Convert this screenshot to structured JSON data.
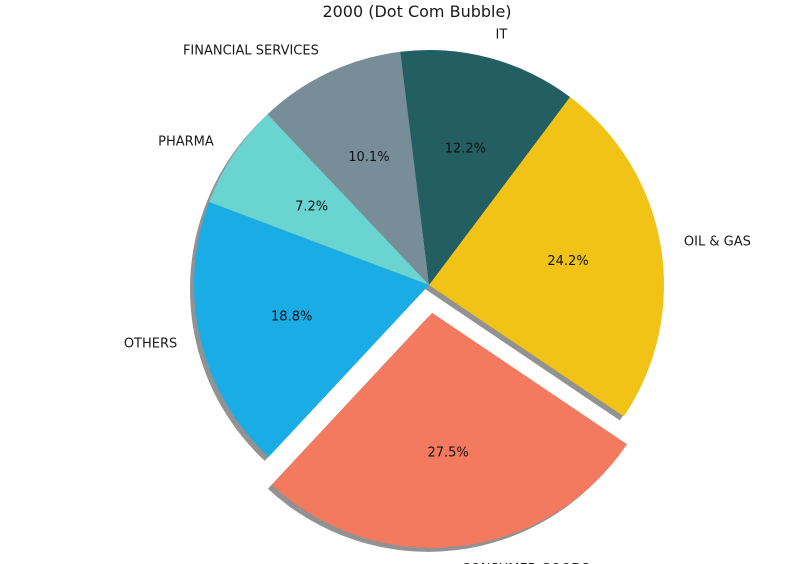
{
  "chart_data": {
    "type": "pie",
    "title": "2000 (Dot Com Bubble)",
    "slices": [
      {
        "label": "OIL & GAS",
        "value": 24.2,
        "value_label": "24.2%",
        "color": "#f1c317",
        "exploded": false
      },
      {
        "label": "IT",
        "value": 12.2,
        "value_label": "12.2%",
        "color": "#225e62",
        "exploded": false
      },
      {
        "label": "FINANCIAL SERVICES",
        "value": 10.1,
        "value_label": "10.1%",
        "color": "#778d98",
        "exploded": false
      },
      {
        "label": "PHARMA",
        "value": 7.2,
        "value_label": "7.2%",
        "color": "#6ad4d0",
        "exploded": false
      },
      {
        "label": "OTHERS",
        "value": 18.8,
        "value_label": "18.8%",
        "color": "#1aace4",
        "exploded": false
      },
      {
        "label": "CONSUMER GOODS",
        "value": 27.5,
        "value_label": "27.5%",
        "color": "#f47a5f",
        "exploded": true
      }
    ],
    "shadow": true,
    "legend": "none"
  }
}
